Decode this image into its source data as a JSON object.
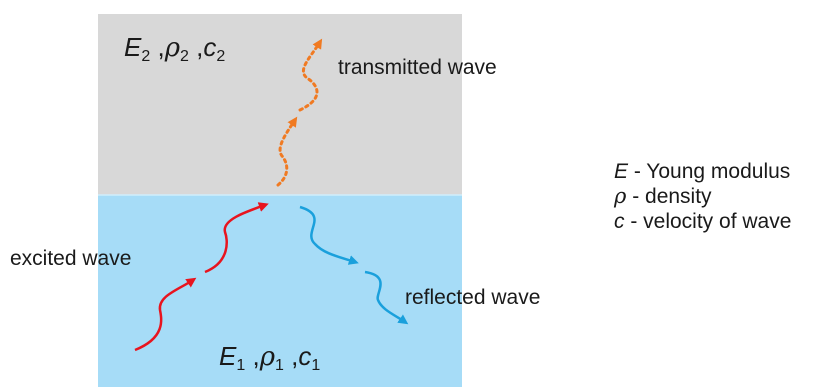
{
  "colors": {
    "medium_top": "#d8d8d8",
    "medium_bottom": "#a6dcf7",
    "excited": "#e8141e",
    "transmitted": "#f07a22",
    "reflected": "#1aa0dc"
  },
  "medium_top": {
    "E": "E",
    "E_sub": "2",
    "rho": "ρ",
    "rho_sub": "2",
    "c": "c",
    "c_sub": "2",
    "sep": ","
  },
  "medium_bottom": {
    "E": "E",
    "E_sub": "1",
    "rho": "ρ",
    "rho_sub": "1",
    "c": "c",
    "c_sub": "1",
    "sep": ","
  },
  "waves": {
    "transmitted": "transmitted wave",
    "excited": "excited wave",
    "reflected": "reflected wave"
  },
  "legend": [
    {
      "symbol": "E",
      "text": " - Young modulus"
    },
    {
      "symbol": "ρ",
      "text": " - density"
    },
    {
      "symbol": "c",
      "text": " - velocity of wave"
    }
  ]
}
